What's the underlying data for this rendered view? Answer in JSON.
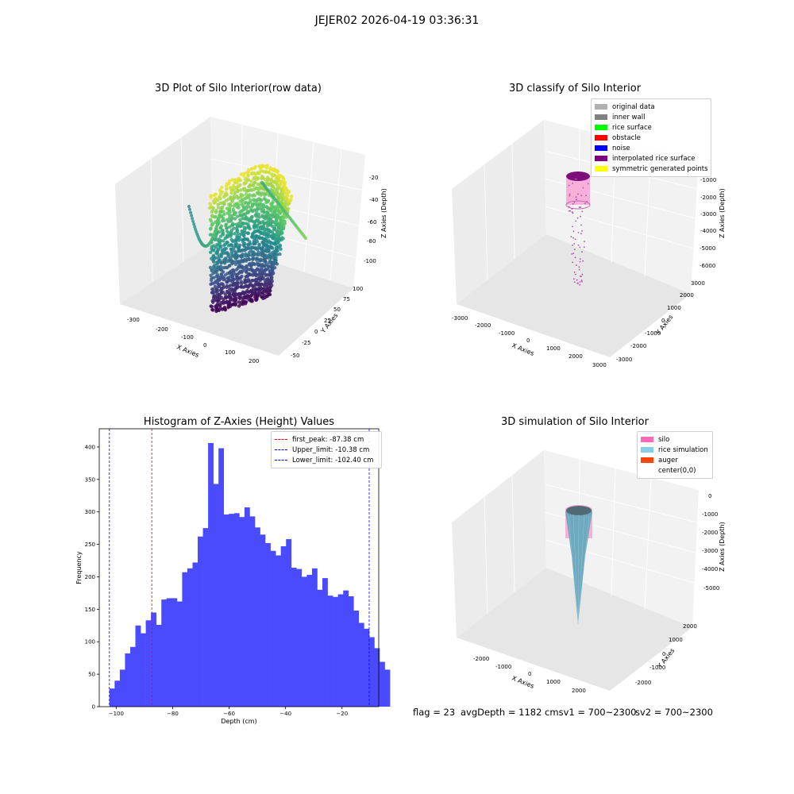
{
  "suptitle": "JEJER02 2026-04-19 03:36:31",
  "footer": {
    "flag": "flag = 23",
    "avg": "avgDepth = 1182 cmsv1 = 700~2300",
    "sv2": "sv2 = 700~2300"
  },
  "colors": {
    "hist_bar": "#4a4aff",
    "first_peak": "#ff0000",
    "limits": "#0000ff",
    "silo": "#ff69b4",
    "rice_sim": "#87ceeb",
    "auger": "#ff4500",
    "scatter_low": "#440154",
    "scatter_high": "#fde725"
  },
  "chart_data": [
    {
      "type": "scatter",
      "projection": "3d",
      "title": "3D Plot of Silo Interior(row data)",
      "xlabel": "X Axies",
      "ylabel": "Y Axies",
      "zlabel": "Z Axies (Depth)",
      "xticks": [
        "-300",
        "-200",
        "-100",
        "0",
        "100",
        "200"
      ],
      "yticks": [
        "-50",
        "-25",
        "0",
        "25",
        "50",
        "75",
        "100"
      ],
      "zticks": [
        "-20",
        "-40",
        "-60",
        "-80",
        "-100"
      ],
      "xlim": [
        -350,
        230
      ],
      "ylim": [
        -60,
        110
      ],
      "zlim": [
        -110,
        -10
      ],
      "colormap": "viridis"
    },
    {
      "type": "scatter",
      "projection": "3d",
      "title": "3D classify of Silo Interior",
      "xlabel": "X Axies",
      "ylabel": "Y Axies",
      "zlabel": "Z Axies (Depth)",
      "xticks": [
        "-3000",
        "-2000",
        "-1000",
        "0",
        "1000",
        "2000",
        "3000"
      ],
      "yticks": [
        "-3000",
        "-2000",
        "-1000",
        "0",
        "1000",
        "2000",
        "3000"
      ],
      "zticks": [
        "0",
        "-1000",
        "-2000",
        "-3000",
        "-4000",
        "-5000",
        "-6000"
      ],
      "legend": [
        "original data",
        "inner wall",
        "rice surface",
        "obstacle",
        "noise",
        "interpolated rice surface",
        "symmetric generated points"
      ],
      "legend_colors": [
        "#b0b0b0",
        "#808080",
        "#00ff00",
        "#ff0000",
        "#0000ff",
        "#800080",
        "#ffff00"
      ],
      "legend_loc": "upper right"
    },
    {
      "type": "bar",
      "title": "Histogram of Z-Axies (Height) Values",
      "xlabel": "Depth (cm)",
      "ylabel": "Frequency",
      "xlim": [
        -106,
        -7
      ],
      "ylim": [
        0,
        428
      ],
      "xticks": [
        -100,
        -80,
        -60,
        -40,
        -20
      ],
      "yticks": [
        0,
        50,
        100,
        150,
        200,
        250,
        300,
        350,
        400
      ],
      "bin_start": -102.4,
      "bin_width": 1.84,
      "values": [
        28,
        40,
        57,
        82,
        92,
        125,
        113,
        133,
        145,
        126,
        165,
        167,
        167,
        162,
        207,
        213,
        222,
        262,
        275,
        406,
        343,
        398,
        296,
        297,
        298,
        292,
        307,
        293,
        276,
        265,
        252,
        240,
        233,
        247,
        258,
        214,
        212,
        200,
        203,
        213,
        180,
        198,
        171,
        169,
        173,
        179,
        170,
        148,
        129,
        120,
        107,
        90,
        69,
        57
      ],
      "lines": [
        {
          "label": "first_peak: -87.38 cm",
          "x": -87.38,
          "color": "#ff0000"
        },
        {
          "label": "Upper_limit: -10.38 cm",
          "x": -10.38,
          "color": "#0000ff"
        },
        {
          "label": "Lower_limit: -102.40 cm",
          "x": -102.4,
          "color": "#0000ff"
        }
      ],
      "legend_loc": "upper right"
    },
    {
      "type": "surface",
      "projection": "3d",
      "title": "3D simulation of Silo Interior",
      "xlabel": "X Axies",
      "ylabel": "Y Axies",
      "zlabel": "Z Axies (Depth)",
      "xticks": [
        "-2000",
        "-1000",
        "0",
        "1000",
        "2000"
      ],
      "yticks": [
        "-2000",
        "-1000",
        "0",
        "1000",
        "2000"
      ],
      "zticks": [
        "0",
        "-1000",
        "-2000",
        "-3000",
        "-4000",
        "-5000"
      ],
      "legend": [
        "silo",
        "rice simulation",
        "auger",
        "center(0,0)"
      ],
      "legend_colors": [
        "#ff69b4",
        "#87ceeb",
        "#ff4500",
        ""
      ],
      "legend_loc": "upper right"
    }
  ]
}
